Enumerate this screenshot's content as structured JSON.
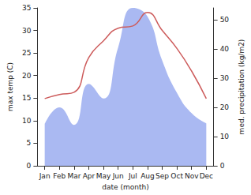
{
  "chart_data": {
    "type": "line",
    "x_label": "date (month)",
    "y_label": "max temp (C)",
    "y2_label": "med. precipitation (kg/m2)",
    "categories": [
      "Jan",
      "Feb",
      "Mar",
      "Apr",
      "May",
      "Jun",
      "Jul",
      "Aug",
      "Sep",
      "Oct",
      "Nov",
      "Dec"
    ],
    "series": [
      {
        "name": "max temp",
        "type": "line",
        "color": "#cd5c5c",
        "values": [
          14.9,
          15.8,
          16.3,
          24,
          27.7,
          30.5,
          31,
          34,
          30,
          26,
          21,
          14.9
        ]
      },
      {
        "name": "med. precipitation",
        "type": "area",
        "axis": "y2",
        "color": "#aab9f2",
        "values": [
          14.3,
          20,
          14,
          28,
          23,
          40.5,
          54,
          51,
          36,
          25,
          18,
          14.5
        ]
      }
    ],
    "ylim": [
      0,
      35
    ],
    "yticks": [
      0,
      5,
      10,
      15,
      20,
      25,
      30,
      35
    ],
    "y2lim": [
      0,
      54
    ],
    "y2ticks": [
      0,
      10,
      20,
      30,
      40,
      50
    ],
    "grid": false
  }
}
